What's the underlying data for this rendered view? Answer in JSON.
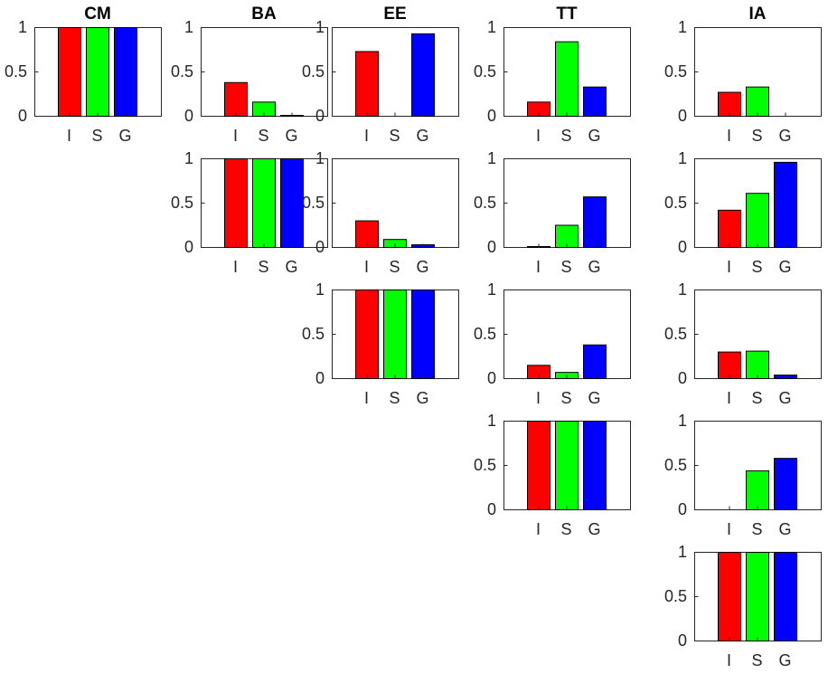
{
  "chart_data": {
    "type": "bar",
    "layout": "upper-triangular grid of bar charts",
    "column_titles": [
      "CM",
      "BA",
      "EE",
      "TT",
      "IA"
    ],
    "categories": [
      "I",
      "S",
      "G"
    ],
    "ylim": [
      0,
      1
    ],
    "yticks": [
      "0",
      "0.5",
      "1"
    ],
    "bar_colors": [
      "#ff0000",
      "#00ff00",
      "#0000ff"
    ],
    "panels": [
      {
        "row": 0,
        "col": 0,
        "values": [
          1.0,
          1.0,
          1.0
        ]
      },
      {
        "row": 0,
        "col": 1,
        "values": [
          0.38,
          0.16,
          0.01
        ]
      },
      {
        "row": 0,
        "col": 2,
        "values": [
          0.73,
          0.0,
          0.93
        ]
      },
      {
        "row": 0,
        "col": 3,
        "values": [
          0.16,
          0.84,
          0.33
        ]
      },
      {
        "row": 0,
        "col": 4,
        "values": [
          0.27,
          0.33,
          0.0
        ]
      },
      {
        "row": 1,
        "col": 1,
        "values": [
          1.0,
          1.0,
          1.0
        ]
      },
      {
        "row": 1,
        "col": 2,
        "values": [
          0.3,
          0.09,
          0.03
        ]
      },
      {
        "row": 1,
        "col": 3,
        "values": [
          0.01,
          0.25,
          0.57
        ]
      },
      {
        "row": 1,
        "col": 4,
        "values": [
          0.42,
          0.61,
          0.96
        ]
      },
      {
        "row": 2,
        "col": 2,
        "values": [
          1.0,
          1.0,
          1.0
        ]
      },
      {
        "row": 2,
        "col": 3,
        "values": [
          0.15,
          0.07,
          0.38
        ]
      },
      {
        "row": 2,
        "col": 4,
        "values": [
          0.3,
          0.31,
          0.04
        ]
      },
      {
        "row": 3,
        "col": 3,
        "values": [
          1.0,
          1.0,
          1.0
        ]
      },
      {
        "row": 3,
        "col": 4,
        "values": [
          0.0,
          0.44,
          0.58
        ]
      },
      {
        "row": 4,
        "col": 4,
        "values": [
          1.0,
          1.0,
          1.0
        ]
      }
    ]
  }
}
